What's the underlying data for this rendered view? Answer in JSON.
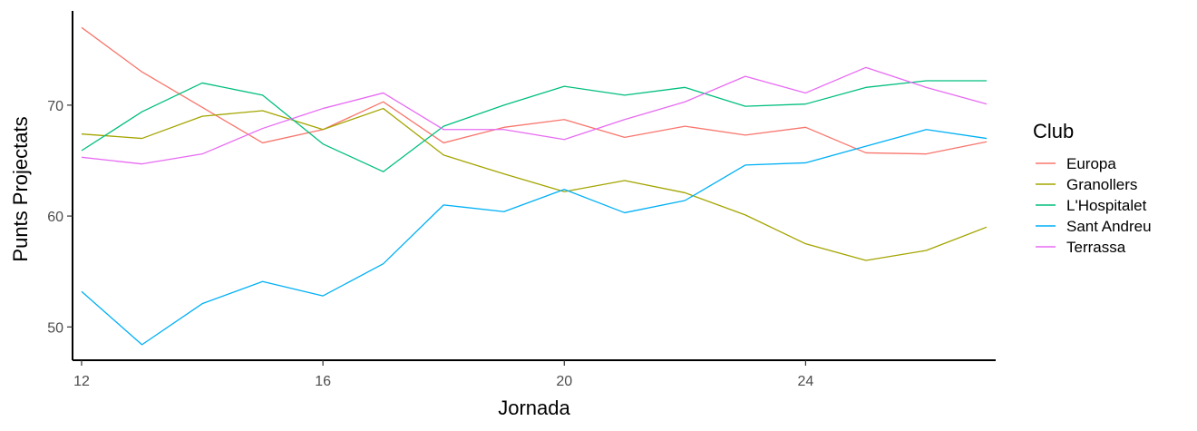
{
  "chart_data": {
    "type": "line",
    "xlabel": "Jornada",
    "ylabel": "Punts Projectats",
    "xlim": [
      11.85,
      27.15
    ],
    "ylim": [
      47,
      78.5
    ],
    "xticks": [
      12,
      16,
      20,
      24
    ],
    "yticks": [
      50,
      60,
      70
    ],
    "x": [
      12,
      13,
      14,
      15,
      16,
      17,
      18,
      19,
      20,
      21,
      22,
      23,
      24,
      25,
      26,
      27
    ],
    "series": [
      {
        "name": "Europa",
        "color": "#F8766D",
        "values": [
          77.0,
          73.0,
          69.8,
          66.6,
          67.8,
          70.3,
          66.6,
          68.0,
          68.7,
          67.1,
          68.1,
          67.3,
          68.0,
          65.7,
          65.6,
          66.7
        ]
      },
      {
        "name": "Granollers",
        "color": "#A3A500",
        "values": [
          67.4,
          67.0,
          69.0,
          69.5,
          67.8,
          69.7,
          65.5,
          63.8,
          62.2,
          63.2,
          62.1,
          60.1,
          57.5,
          56.0,
          56.9,
          59.0
        ]
      },
      {
        "name": "L'Hospitalet",
        "color": "#00BF7D",
        "values": [
          65.9,
          69.4,
          72.0,
          70.9,
          66.5,
          64.0,
          68.1,
          70.0,
          71.7,
          70.9,
          71.6,
          69.9,
          70.1,
          71.6,
          72.2,
          72.2
        ]
      },
      {
        "name": "Sant Andreu",
        "color": "#00B0F6",
        "values": [
          53.2,
          48.4,
          52.1,
          54.1,
          52.8,
          55.7,
          61.0,
          60.4,
          62.4,
          60.3,
          61.4,
          64.6,
          64.8,
          66.3,
          67.8,
          67.0
        ]
      },
      {
        "name": "Terrassa",
        "color": "#E76BF3",
        "values": [
          65.3,
          64.7,
          65.6,
          67.9,
          69.7,
          71.1,
          67.8,
          67.8,
          66.9,
          68.7,
          70.3,
          72.6,
          71.1,
          73.4,
          71.6,
          70.1
        ]
      }
    ],
    "legend": {
      "title": "Club",
      "position": "right"
    },
    "grid": false
  }
}
